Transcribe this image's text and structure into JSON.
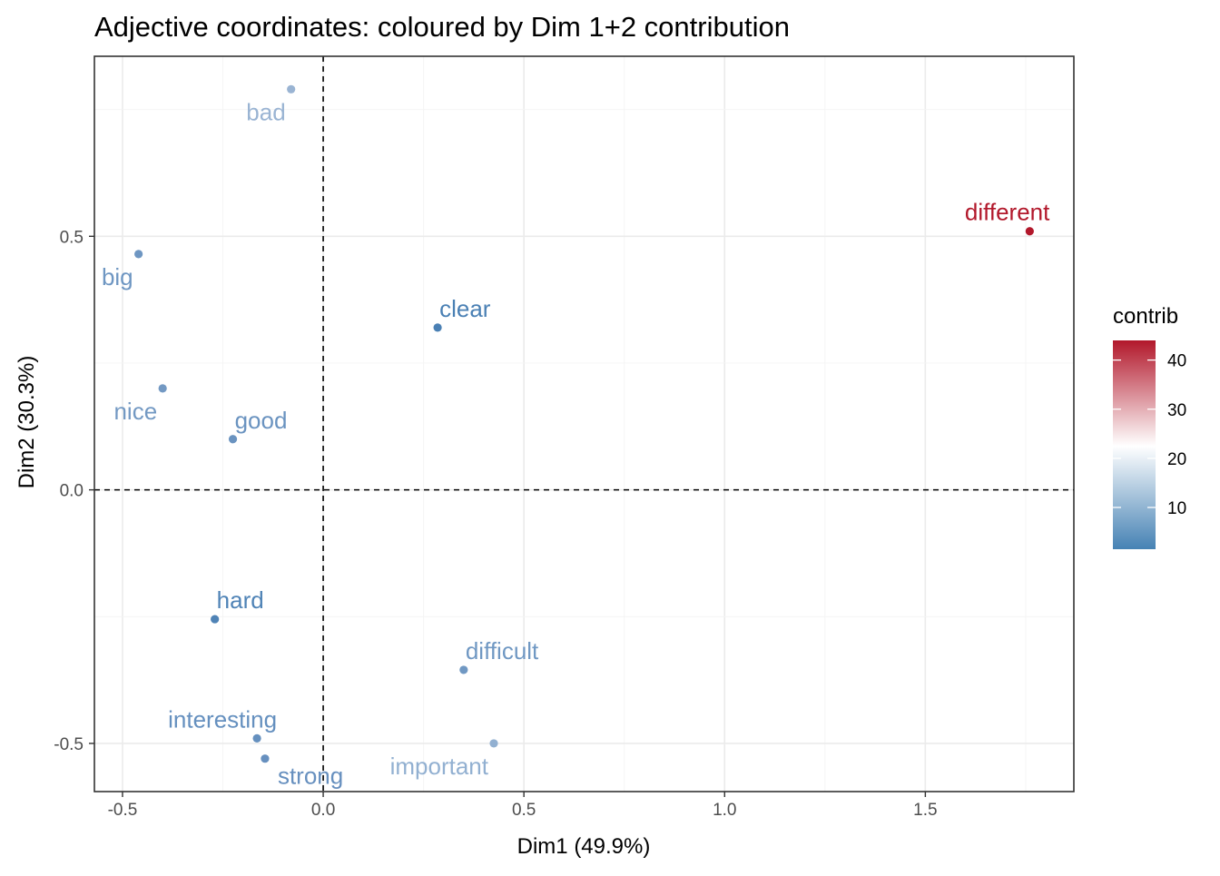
{
  "chart_data": {
    "type": "scatter",
    "title": "Adjective coordinates: coloured by Dim 1+2 contribution",
    "xlabel": "Dim1 (49.9%)",
    "ylabel": "Dim2 (30.3%)",
    "xlim": [
      -0.57,
      1.87
    ],
    "ylim": [
      -0.595,
      0.855
    ],
    "xticks": [
      -0.5,
      0.0,
      0.5,
      1.0,
      1.5
    ],
    "xtick_labels": [
      "-0.5",
      "0.0",
      "0.5",
      "1.0",
      "1.5"
    ],
    "yticks": [
      -0.5,
      0.0,
      0.5
    ],
    "ytick_labels": [
      "-0.5",
      "0.0",
      "0.5"
    ],
    "reference_lines": {
      "x": 0,
      "y": 0,
      "style": "dashed"
    },
    "grid": true,
    "points": [
      {
        "label": "bad",
        "x": -0.08,
        "y": 0.79,
        "contrib": 14,
        "color": "#9ab4d3",
        "label_pos": "below-left"
      },
      {
        "label": "different",
        "x": 1.76,
        "y": 0.51,
        "contrib": 43,
        "color": "#b2182b",
        "label_pos": "above-left"
      },
      {
        "label": "big",
        "x": -0.46,
        "y": 0.465,
        "contrib": 8,
        "color": "#6e96c2",
        "label_pos": "below-left"
      },
      {
        "label": "clear",
        "x": 0.285,
        "y": 0.32,
        "contrib": 4,
        "color": "#4a80b4",
        "label_pos": "above-right"
      },
      {
        "label": "nice",
        "x": -0.4,
        "y": 0.2,
        "contrib": 8,
        "color": "#7399c3",
        "label_pos": "below-left"
      },
      {
        "label": "good",
        "x": -0.225,
        "y": 0.1,
        "contrib": 7,
        "color": "#6a93c0",
        "label_pos": "above-right"
      },
      {
        "label": "hard",
        "x": -0.27,
        "y": -0.255,
        "contrib": 4,
        "color": "#4f83b6",
        "label_pos": "above-right"
      },
      {
        "label": "difficult",
        "x": 0.35,
        "y": -0.355,
        "contrib": 8,
        "color": "#7098c3",
        "label_pos": "above-right"
      },
      {
        "label": "interesting",
        "x": -0.165,
        "y": -0.49,
        "contrib": 7,
        "color": "#6590bf",
        "label_pos": "above-left"
      },
      {
        "label": "important",
        "x": 0.425,
        "y": -0.5,
        "contrib": 12,
        "color": "#92b0d1",
        "label_pos": "below-left"
      },
      {
        "label": "strong",
        "x": -0.145,
        "y": -0.53,
        "contrib": 7,
        "color": "#6790bf",
        "label_pos": "below-right"
      }
    ],
    "legend": {
      "title": "contrib",
      "placement": "right",
      "range": [
        1.5,
        44
      ],
      "ticks": [
        10,
        20,
        30,
        40
      ],
      "tick_labels": [
        "10",
        "20",
        "30",
        "40"
      ],
      "gradient": {
        "low": "#4682b4",
        "mid": "#ffffff",
        "high": "#b2182b",
        "midpoint": 22.5
      }
    }
  }
}
